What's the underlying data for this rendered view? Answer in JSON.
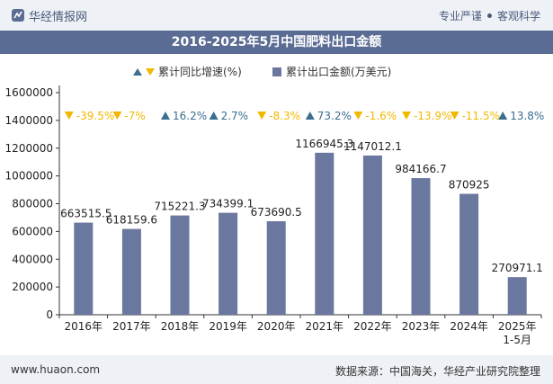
{
  "header": {
    "brand": "华经情报网",
    "tagline_left": "专业严谨",
    "tagline_right": "客观科学"
  },
  "footer": {
    "url": "www.huaon.com",
    "source": "数据来源：中国海关，华经产业研究院整理"
  },
  "colors": {
    "bar": "#6a779f",
    "up": "#3b6e8f",
    "down": "#f2b800",
    "title_bg": "#5b6c94"
  },
  "chart_data": {
    "type": "bar",
    "title": "2016-2025年5月中国肥料出口金额",
    "legend": {
      "growth_label": "累计同比增速(%)",
      "amount_label": "累计出口金额(万美元)",
      "placement": "top"
    },
    "categories": [
      "2016年",
      "2017年",
      "2018年",
      "2019年",
      "2020年",
      "2021年",
      "2022年",
      "2023年",
      "2024年",
      "2025年\n1-5月"
    ],
    "series": [
      {
        "name": "累计出口金额(万美元)",
        "values": [
          663515.5,
          618159.6,
          715221.3,
          734399.1,
          673690.5,
          1166945.3,
          1147012.1,
          984166.7,
          870925,
          270971.1
        ],
        "labels": [
          "663515.5",
          "618159.6",
          "715221.3",
          "734399.1",
          "673690.5",
          "1166945.3",
          "1147012.1",
          "984166.7",
          "870925",
          "270971.1"
        ]
      },
      {
        "name": "累计同比增速(%)",
        "values": [
          -39.5,
          -7,
          16.2,
          2.7,
          -8.3,
          73.2,
          -1.6,
          -13.9,
          -11.5,
          13.8
        ],
        "labels": [
          "-39.5%",
          "-7%",
          "16.2%",
          "2.7%",
          "-8.3%",
          "73.2%",
          "-1.6%",
          "-13.9%",
          "-11.5%",
          "13.8%"
        ]
      }
    ],
    "ylim": [
      0,
      1600000
    ],
    "yticks": [
      "0",
      "200000",
      "400000",
      "600000",
      "800000",
      "1000000",
      "1200000",
      "1400000",
      "1600000"
    ],
    "xlabel": "",
    "ylabel": "",
    "grid": false
  }
}
